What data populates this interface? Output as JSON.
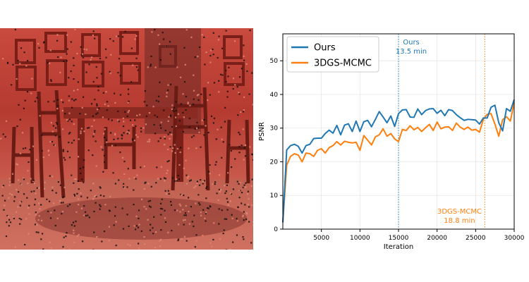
{
  "colors": {
    "ours": "#1f77b4",
    "mcmc": "#ff7f0e",
    "overlay_red": "#d23a2e"
  },
  "image": {
    "description_icon": "dining-room-photo-with-point-overlay-icon"
  },
  "chart_data": {
    "type": "line",
    "title": "",
    "xlabel": "Iteration",
    "ylabel": "PSNR",
    "xlim": [
      0,
      30000
    ],
    "ylim": [
      0,
      58
    ],
    "xticks": [
      5000,
      10000,
      15000,
      20000,
      25000,
      30000
    ],
    "yticks": [
      0,
      10,
      20,
      30,
      40,
      50
    ],
    "grid": true,
    "legend_position": "top-left",
    "series": [
      {
        "name": "Ours",
        "color": "#1f77b4",
        "x": [
          0,
          500,
          1000,
          1500,
          2000,
          2500,
          3000,
          3500,
          4000,
          4500,
          5000,
          5500,
          6000,
          6500,
          7000,
          7500,
          8000,
          8500,
          9000,
          9500,
          10000,
          10500,
          11000,
          11500,
          12000,
          12500,
          13000,
          13500,
          14000,
          14500,
          15000,
          15500,
          16000,
          16500,
          17000,
          17500,
          18000,
          18500,
          19000,
          19500,
          20000,
          20500,
          21000,
          21500,
          22000,
          22500,
          23000,
          23500,
          24000,
          24500,
          25000,
          25500,
          26000,
          26500,
          27000,
          27500,
          28000,
          28500,
          29000,
          29500,
          30000
        ],
        "y": [
          2,
          23.5,
          24.8,
          25.2,
          24.6,
          22.6,
          24.8,
          25.2,
          26.9,
          27.0,
          27.0,
          28.4,
          29.4,
          28.5,
          30.8,
          28.0,
          30.9,
          31.3,
          29.0,
          32.1,
          29.0,
          31.9,
          32.3,
          30.4,
          32.6,
          34.9,
          33.3,
          31.6,
          33.6,
          30.5,
          34.3,
          35.4,
          35.5,
          33.3,
          33.2,
          35.7,
          34.0,
          35.2,
          35.7,
          35.8,
          34.4,
          35.3,
          33.7,
          35.5,
          35.2,
          34.0,
          33.1,
          32.3,
          32.6,
          32.5,
          32.4,
          31.2,
          33.0,
          33.0,
          36.2,
          36.8,
          31.6,
          29.2,
          35.8,
          35.0,
          38.5
        ]
      },
      {
        "name": "3DGS-MCMC",
        "color": "#ff7f0e",
        "x": [
          0,
          500,
          1000,
          1500,
          2000,
          2500,
          3000,
          3500,
          4000,
          4500,
          5000,
          5500,
          6000,
          6500,
          7000,
          7500,
          8000,
          8500,
          9000,
          9500,
          10000,
          10500,
          11000,
          11500,
          12000,
          12500,
          13000,
          13500,
          14000,
          14500,
          15000,
          15500,
          16000,
          16500,
          17000,
          17500,
          18000,
          18500,
          19000,
          19500,
          20000,
          20500,
          21000,
          21500,
          22000,
          22500,
          23000,
          23500,
          24000,
          24500,
          25000,
          25500,
          26000,
          26500,
          27000,
          27500,
          28000,
          28500,
          29000,
          29500,
          30000
        ],
        "y": [
          2,
          19.0,
          21.6,
          22.4,
          22.0,
          20.0,
          22.6,
          22.4,
          21.6,
          23.4,
          23.9,
          22.6,
          24.2,
          24.8,
          26.0,
          25.0,
          26.1,
          25.8,
          25.6,
          25.8,
          23.4,
          27.8,
          26.4,
          25.0,
          27.4,
          28.0,
          29.8,
          27.6,
          28.4,
          26.8,
          26.0,
          29.6,
          29.3,
          30.7,
          29.5,
          30.2,
          29.0,
          30.1,
          31.1,
          29.3,
          31.8,
          29.8,
          30.3,
          30.4,
          29.3,
          31.5,
          30.3,
          29.6,
          30.3,
          29.4,
          29.6,
          28.8,
          32.6,
          34.1,
          34.3,
          31.2,
          27.6,
          32.5,
          33.4,
          32.1,
          37.5
        ]
      }
    ],
    "annotations": [
      {
        "series": "Ours",
        "x": 15000,
        "line1": "Ours",
        "line2": "13.5 min"
      },
      {
        "series": "3DGS-MCMC",
        "x": 26200,
        "line1": "3DGS-MCMC",
        "line2": "18.8 min"
      }
    ]
  }
}
